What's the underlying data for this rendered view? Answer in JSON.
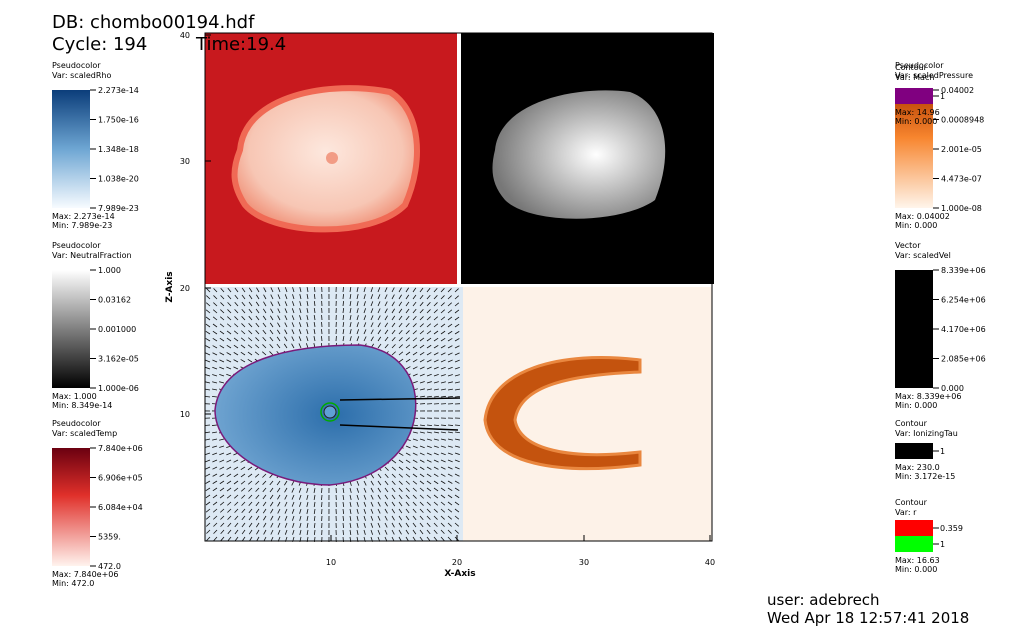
{
  "header": {
    "db": "DB: chombo00194.hdf",
    "cycle": "Cycle: 194",
    "time": "Time:19.4"
  },
  "axes": {
    "x_title": "X-Axis",
    "y_title": "Z-Axis",
    "xticks": [
      "10",
      "20",
      "30",
      "40"
    ],
    "yticks": [
      "10",
      "20",
      "30",
      "40"
    ]
  },
  "legends_left": [
    {
      "title": "Pseudocolor",
      "var": "Var: scaledRho",
      "labels": [
        "2.273e-14",
        "1.750e-16",
        "1.348e-18",
        "1.038e-20",
        "7.989e-23"
      ],
      "max": "Max:  2.273e-14",
      "min": "Min:  7.989e-23"
    },
    {
      "title": "Pseudocolor",
      "var": "Var: NeutralFraction",
      "labels": [
        "1.000",
        "0.03162",
        "0.001000",
        "3.162e-05",
        "1.000e-06"
      ],
      "max": "Max:  1.000",
      "min": "Min:  8.349e-14"
    },
    {
      "title": "Pseudocolor",
      "var": "Var: scaledTemp",
      "labels": [
        "7.840e+06",
        "6.906e+05",
        "6.084e+04",
        "5359.",
        "472.0"
      ],
      "max": "Max:  7.840e+06",
      "min": "Min:  472.0"
    }
  ],
  "legends_right": [
    {
      "title": "Pseudocolor",
      "var": "Var: scaledPressure",
      "labels": [
        "0.04002",
        "0.0008948",
        "2.001e-05",
        "4.473e-07",
        "1.000e-08"
      ],
      "max": "Max:  0.04002",
      "min": "Min:  0.000"
    },
    {
      "title": "Vector",
      "var": "Var: scaledVel",
      "labels": [
        "8.339e+06",
        "6.254e+06",
        "4.170e+06",
        "2.085e+06",
        "0.000"
      ],
      "max": "Max:  8.339e+06",
      "min": "Min:  0.000"
    }
  ],
  "contours": [
    {
      "title": "Contour",
      "var": "Var: Mach",
      "labels": [
        "1"
      ],
      "max": "Max:  14.96",
      "min": "Min:  0.000"
    },
    {
      "title": "Contour",
      "var": "Var: IonizingTau",
      "labels": [
        "1"
      ],
      "max": "Max:  230.0",
      "min": "Min:  3.172e-15"
    },
    {
      "title": "Contour",
      "var": "Var: r",
      "labels": [
        "0.359",
        "1"
      ],
      "max": "Max:  16.63",
      "min": "Min:  0.000"
    }
  ],
  "footer": {
    "user": "user: adebrech",
    "date": "Wed Apr 18 12:57:41 2018"
  }
}
